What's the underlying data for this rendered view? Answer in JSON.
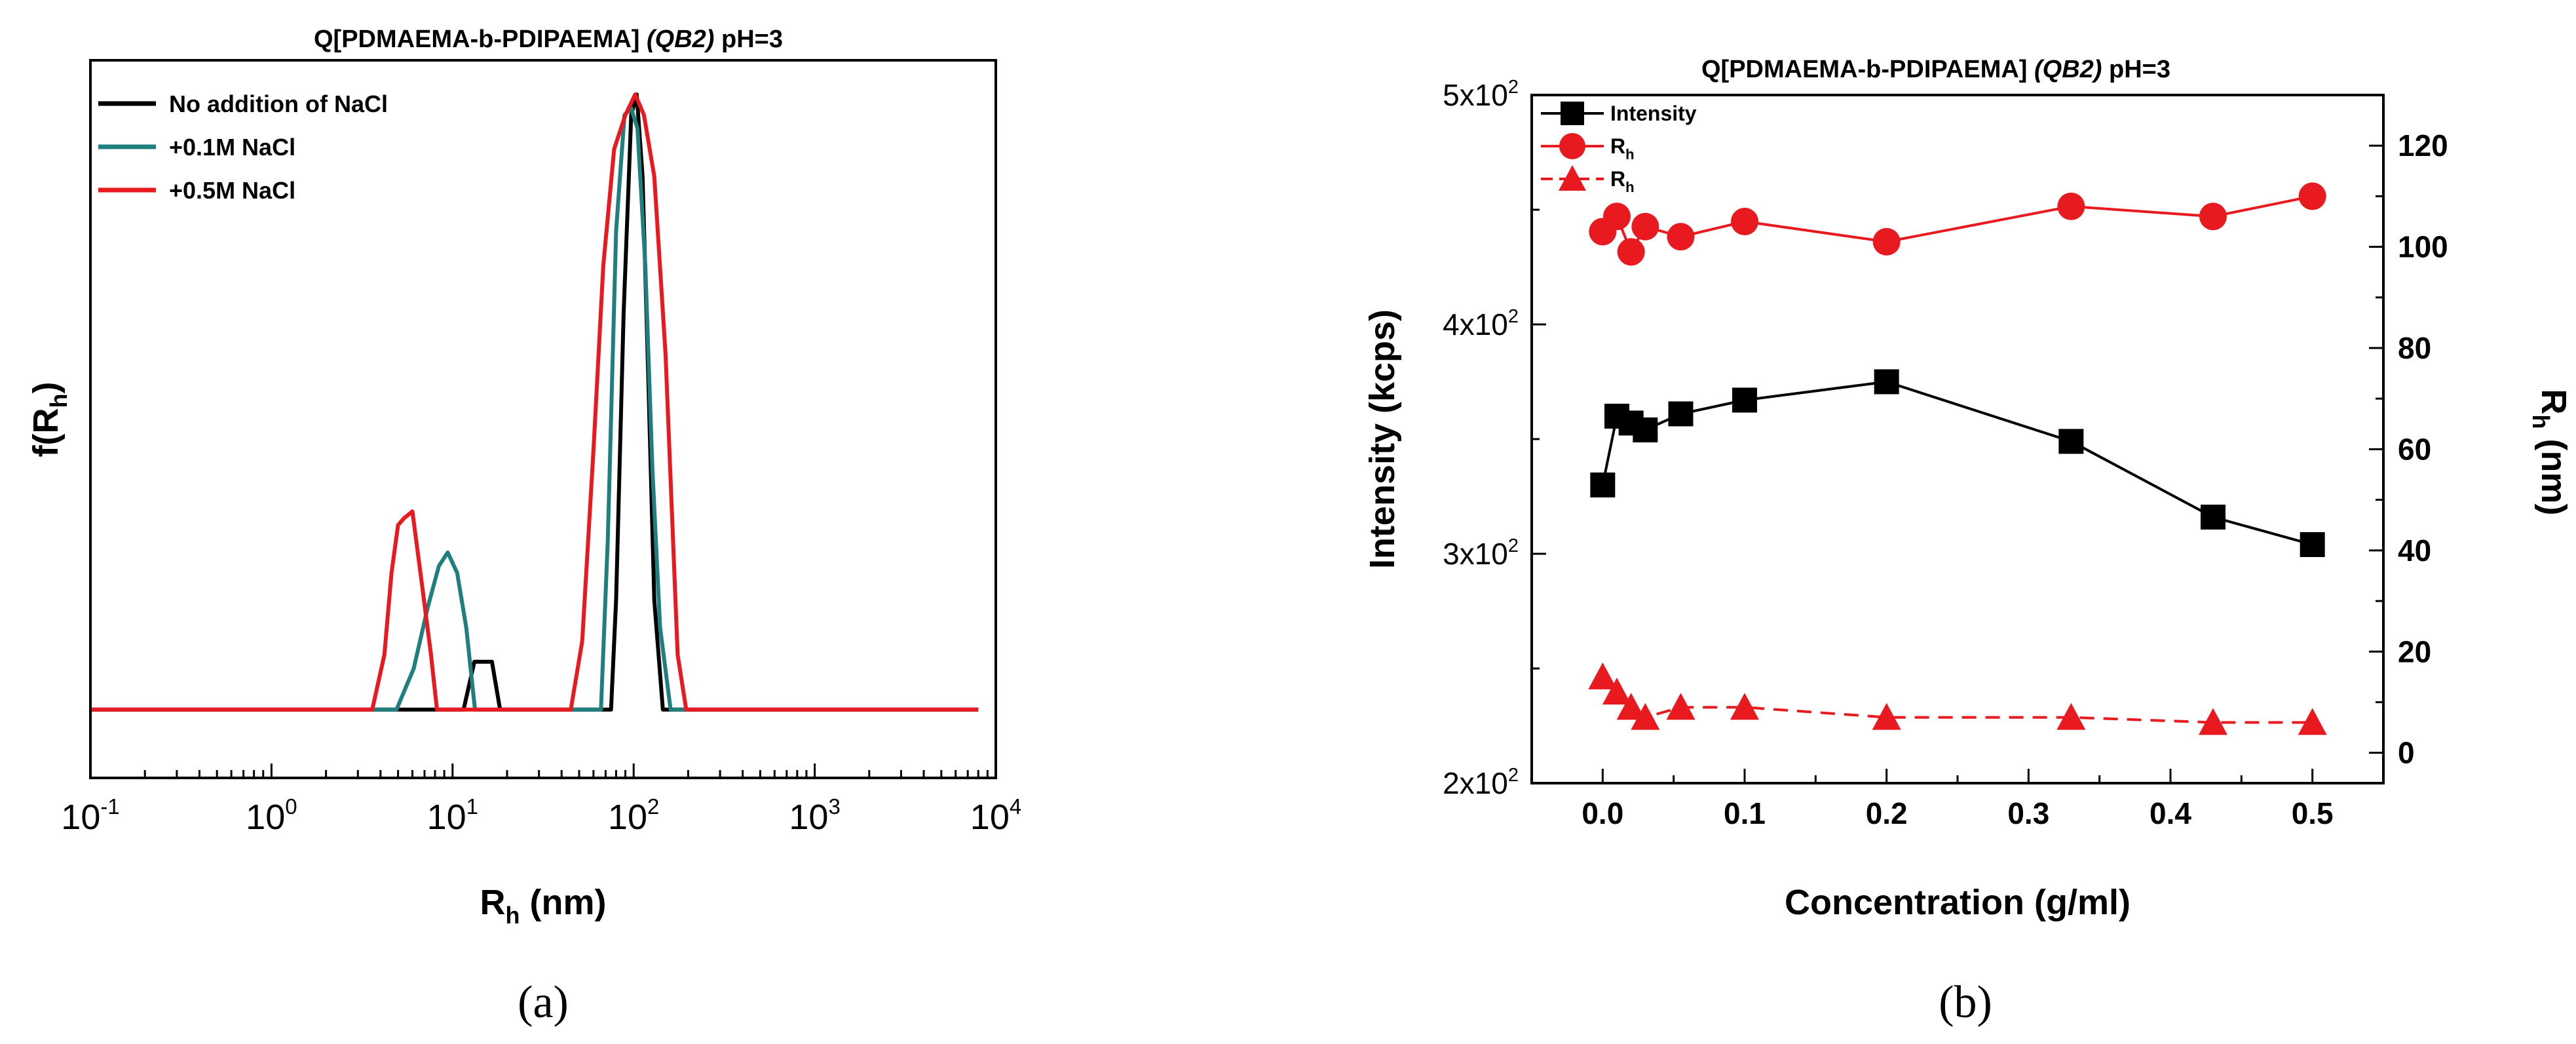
{
  "panels": [
    {
      "label": "(a)"
    },
    {
      "label": "(b)"
    }
  ],
  "chart_data": [
    {
      "type": "line",
      "title": {
        "pre": "Q[PDMAEMA-b-PDIPAEMA] ",
        "italic": "(QB2)",
        "post": " pH=3"
      },
      "xlabel": {
        "main": "R",
        "sub": "h",
        "post": " (nm)"
      },
      "ylabel": {
        "pre": "f(R",
        "sub": "h",
        "post": ")"
      },
      "xscale": "log",
      "xlim": [
        0.1,
        10000
      ],
      "ylim": [
        0,
        1.05
      ],
      "xticks": [
        {
          "value": 0.1,
          "base": "10",
          "exp": "-1"
        },
        {
          "value": 1,
          "base": "10",
          "exp": "0"
        },
        {
          "value": 10,
          "base": "10",
          "exp": "1"
        },
        {
          "value": 100,
          "base": "10",
          "exp": "2"
        },
        {
          "value": 1000,
          "base": "10",
          "exp": "3"
        },
        {
          "value": 10000,
          "base": "10",
          "exp": "4"
        }
      ],
      "legend_position": "top-left",
      "series": [
        {
          "name": "No addition of NaCl",
          "color": "#000000",
          "x": [
            0.1,
            11.5,
            13.2,
            14.5,
            16.5,
            18.3,
            75,
            80,
            88,
            97,
            104,
            112,
            120,
            130,
            145,
            8000
          ],
          "y": [
            0.1,
            0.1,
            0.17,
            0.17,
            0.17,
            0.1,
            0.1,
            0.26,
            0.68,
            0.97,
            1.0,
            0.88,
            0.6,
            0.26,
            0.1,
            0.1
          ]
        },
        {
          "name": "+0.1M NaCl",
          "color": "#1f7f7f",
          "x": [
            0.1,
            4.9,
            6.1,
            7.3,
            8.4,
            9.4,
            10.6,
            11.9,
            13.3,
            66,
            72,
            80,
            89,
            97,
            105,
            116,
            127,
            140,
            160,
            8000
          ],
          "y": [
            0.1,
            0.1,
            0.16,
            0.25,
            0.31,
            0.33,
            0.3,
            0.22,
            0.1,
            0.1,
            0.35,
            0.8,
            0.97,
            0.98,
            0.95,
            0.75,
            0.45,
            0.22,
            0.1,
            0.1
          ]
        },
        {
          "name": "+0.5M NaCl",
          "color": "#e8191f",
          "x": [
            0.1,
            3.6,
            4.2,
            4.6,
            5.0,
            5.4,
            6.0,
            6.8,
            7.6,
            8.2,
            45,
            52,
            60,
            68,
            78,
            90,
            102,
            114,
            130,
            150,
            175,
            195,
            8000
          ],
          "y": [
            0.1,
            0.1,
            0.18,
            0.3,
            0.37,
            0.38,
            0.39,
            0.28,
            0.18,
            0.1,
            0.1,
            0.2,
            0.48,
            0.75,
            0.92,
            0.97,
            1.0,
            0.97,
            0.88,
            0.62,
            0.18,
            0.1,
            0.1
          ]
        }
      ]
    },
    {
      "type": "line",
      "title": {
        "pre": "Q[PDMAEMA-b-PDIPAEMA] ",
        "italic": "(QB2)",
        "post": "  pH=3"
      },
      "xlabel": {
        "main": "Concentration (g/ml)"
      },
      "ylabel": {
        "main": "Intensity (kcps)"
      },
      "y2label": {
        "main": "R",
        "sub": "h",
        "post": " (nm)"
      },
      "xlim": [
        -0.05,
        0.55
      ],
      "xticks": [
        "0.0",
        "0.1",
        "0.2",
        "0.3",
        "0.4",
        "0.5"
      ],
      "ylim": [
        200,
        500
      ],
      "yticks": [
        {
          "value": 200,
          "base": "2x10",
          "exp": "2"
        },
        {
          "value": 300,
          "base": "3x10",
          "exp": "2"
        },
        {
          "value": 400,
          "base": "4x10",
          "exp": "2"
        },
        {
          "value": 500,
          "base": "5x10",
          "exp": "2"
        }
      ],
      "y2lim": [
        -6,
        130
      ],
      "y2ticks": [
        "0",
        "20",
        "40",
        "60",
        "80",
        "100",
        "120"
      ],
      "legend_position": "top-left",
      "series": [
        {
          "name": "Intensity",
          "sub": "",
          "axis": "left",
          "marker": "square",
          "dash": false,
          "color": "#000000",
          "x": [
            0.0,
            0.01,
            0.02,
            0.03,
            0.055,
            0.1,
            0.2,
            0.33,
            0.43,
            0.5
          ],
          "y": [
            330,
            360,
            357,
            354,
            361,
            367,
            375,
            349,
            316,
            304
          ]
        },
        {
          "name": "R",
          "sub": "h",
          "axis": "right",
          "marker": "circle",
          "dash": false,
          "color": "#e8191f",
          "x": [
            0.0,
            0.01,
            0.02,
            0.03,
            0.055,
            0.1,
            0.2,
            0.33,
            0.43,
            0.5
          ],
          "y": [
            103,
            106,
            99,
            104,
            102,
            105,
            101,
            108,
            106,
            110
          ]
        },
        {
          "name": "R",
          "sub": "h",
          "axis": "right",
          "marker": "triangle",
          "dash": true,
          "color": "#e8191f",
          "x": [
            0.0,
            0.01,
            0.02,
            0.03,
            0.055,
            0.1,
            0.2,
            0.33,
            0.43,
            0.5
          ],
          "y": [
            15,
            12,
            9,
            7,
            9,
            9,
            7,
            7,
            6,
            6
          ]
        }
      ]
    }
  ]
}
